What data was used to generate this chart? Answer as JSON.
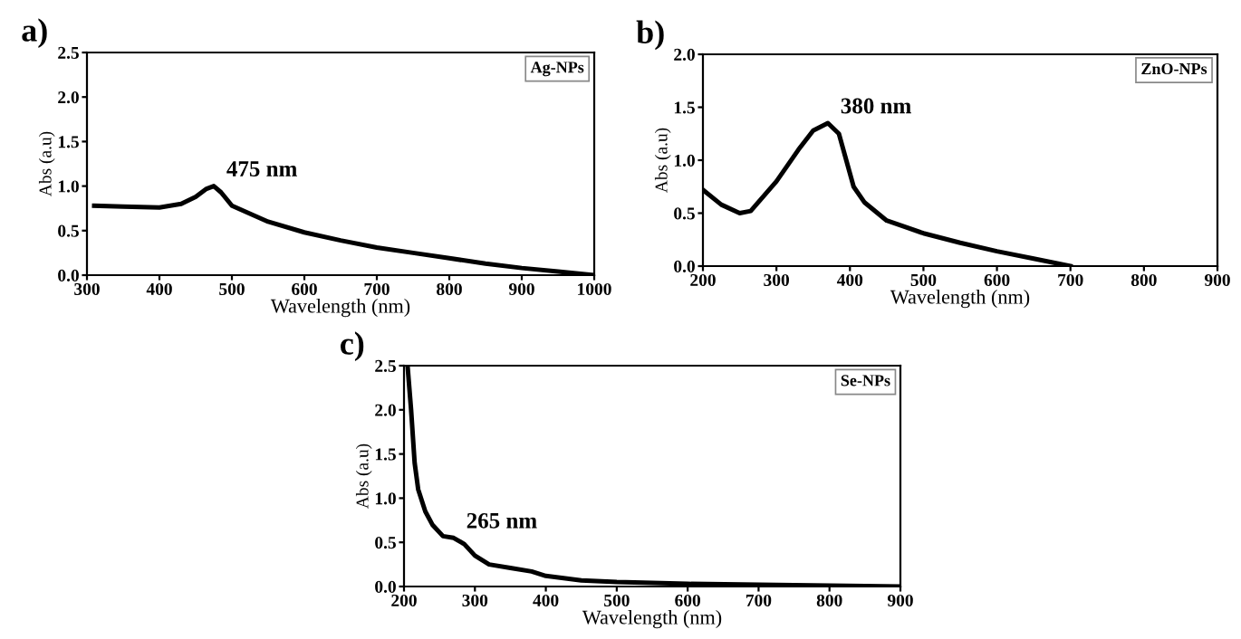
{
  "chart_data": [
    {
      "type": "line",
      "title": "a)",
      "xlabel": "Wavelength (nm)",
      "ylabel": "Abs (a.u)",
      "xlim": [
        300,
        1000
      ],
      "ylim": [
        0,
        2.5
      ],
      "xticks": [
        300,
        400,
        500,
        600,
        700,
        800,
        900,
        1000
      ],
      "yticks": [
        {
          "value": 0,
          "label": "0.0"
        },
        0.5,
        {
          "value": 1,
          "label": "1.0"
        },
        1.5,
        {
          "value": 2,
          "label": "2.0"
        },
        2.5
      ],
      "annotations": [
        {
          "text": "475 nm",
          "x": 475,
          "y": 1.0
        },
        "Ag-NPs"
      ],
      "series": [
        {
          "color": "#000000",
          "x": [
            310,
            350,
            400,
            430,
            450,
            465,
            475,
            485,
            500,
            550,
            600,
            650,
            700,
            750,
            800,
            850,
            900,
            950,
            1000
          ],
          "values": [
            0.78,
            0.77,
            0.76,
            0.8,
            0.88,
            0.97,
            1.0,
            0.93,
            0.78,
            0.6,
            0.48,
            0.39,
            0.31,
            0.25,
            0.19,
            0.13,
            0.08,
            0.04,
            0.0
          ]
        }
      ]
    },
    {
      "type": "line",
      "title": "b)",
      "xlabel": "Wavelength (nm)",
      "ylabel": "Abs (a.u)",
      "xlim": [
        200,
        900
      ],
      "ylim": [
        0,
        2.0
      ],
      "xticks": [
        200,
        300,
        400,
        500,
        600,
        700,
        800,
        900
      ],
      "yticks": [
        {
          "value": 0,
          "label": "0.0"
        },
        0.5,
        {
          "value": 1,
          "label": "1.0"
        },
        1.5,
        {
          "value": 2,
          "label": "2.0"
        }
      ],
      "annotations": [
        {
          "text": "380 nm",
          "x": 370,
          "y": 1.35
        },
        "ZnO-NPs"
      ],
      "series": [
        {
          "color": "#000000",
          "x": [
            200,
            225,
            250,
            265,
            300,
            330,
            350,
            370,
            385,
            395,
            405,
            420,
            450,
            500,
            550,
            600,
            650,
            700
          ],
          "values": [
            0.72,
            0.58,
            0.5,
            0.52,
            0.8,
            1.1,
            1.28,
            1.35,
            1.25,
            1.0,
            0.75,
            0.6,
            0.43,
            0.31,
            0.22,
            0.14,
            0.07,
            0.0
          ]
        }
      ]
    },
    {
      "type": "line",
      "title": "c)",
      "xlabel": "Wavelength (nm)",
      "ylabel": "Abs (a.u)",
      "xlim": [
        200,
        900
      ],
      "ylim": [
        0,
        2.5
      ],
      "xticks": [
        200,
        300,
        400,
        500,
        600,
        700,
        800,
        900
      ],
      "yticks": [
        {
          "value": 0,
          "label": "0.0"
        },
        0.5,
        {
          "value": 1,
          "label": "1.0"
        },
        1.5,
        {
          "value": 2,
          "label": "2.0"
        },
        2.5
      ],
      "annotations": [
        {
          "text": "265 nm",
          "x": 270,
          "y": 0.55
        },
        "Se-NPs"
      ],
      "series": [
        {
          "color": "#000000",
          "x": [
            205,
            210,
            215,
            220,
            230,
            240,
            255,
            270,
            285,
            300,
            320,
            350,
            380,
            400,
            450,
            500,
            600,
            700,
            800,
            900
          ],
          "values": [
            2.5,
            2.0,
            1.4,
            1.1,
            0.85,
            0.7,
            0.57,
            0.55,
            0.48,
            0.35,
            0.25,
            0.21,
            0.17,
            0.12,
            0.07,
            0.05,
            0.03,
            0.02,
            0.01,
            0.0
          ]
        }
      ]
    }
  ]
}
